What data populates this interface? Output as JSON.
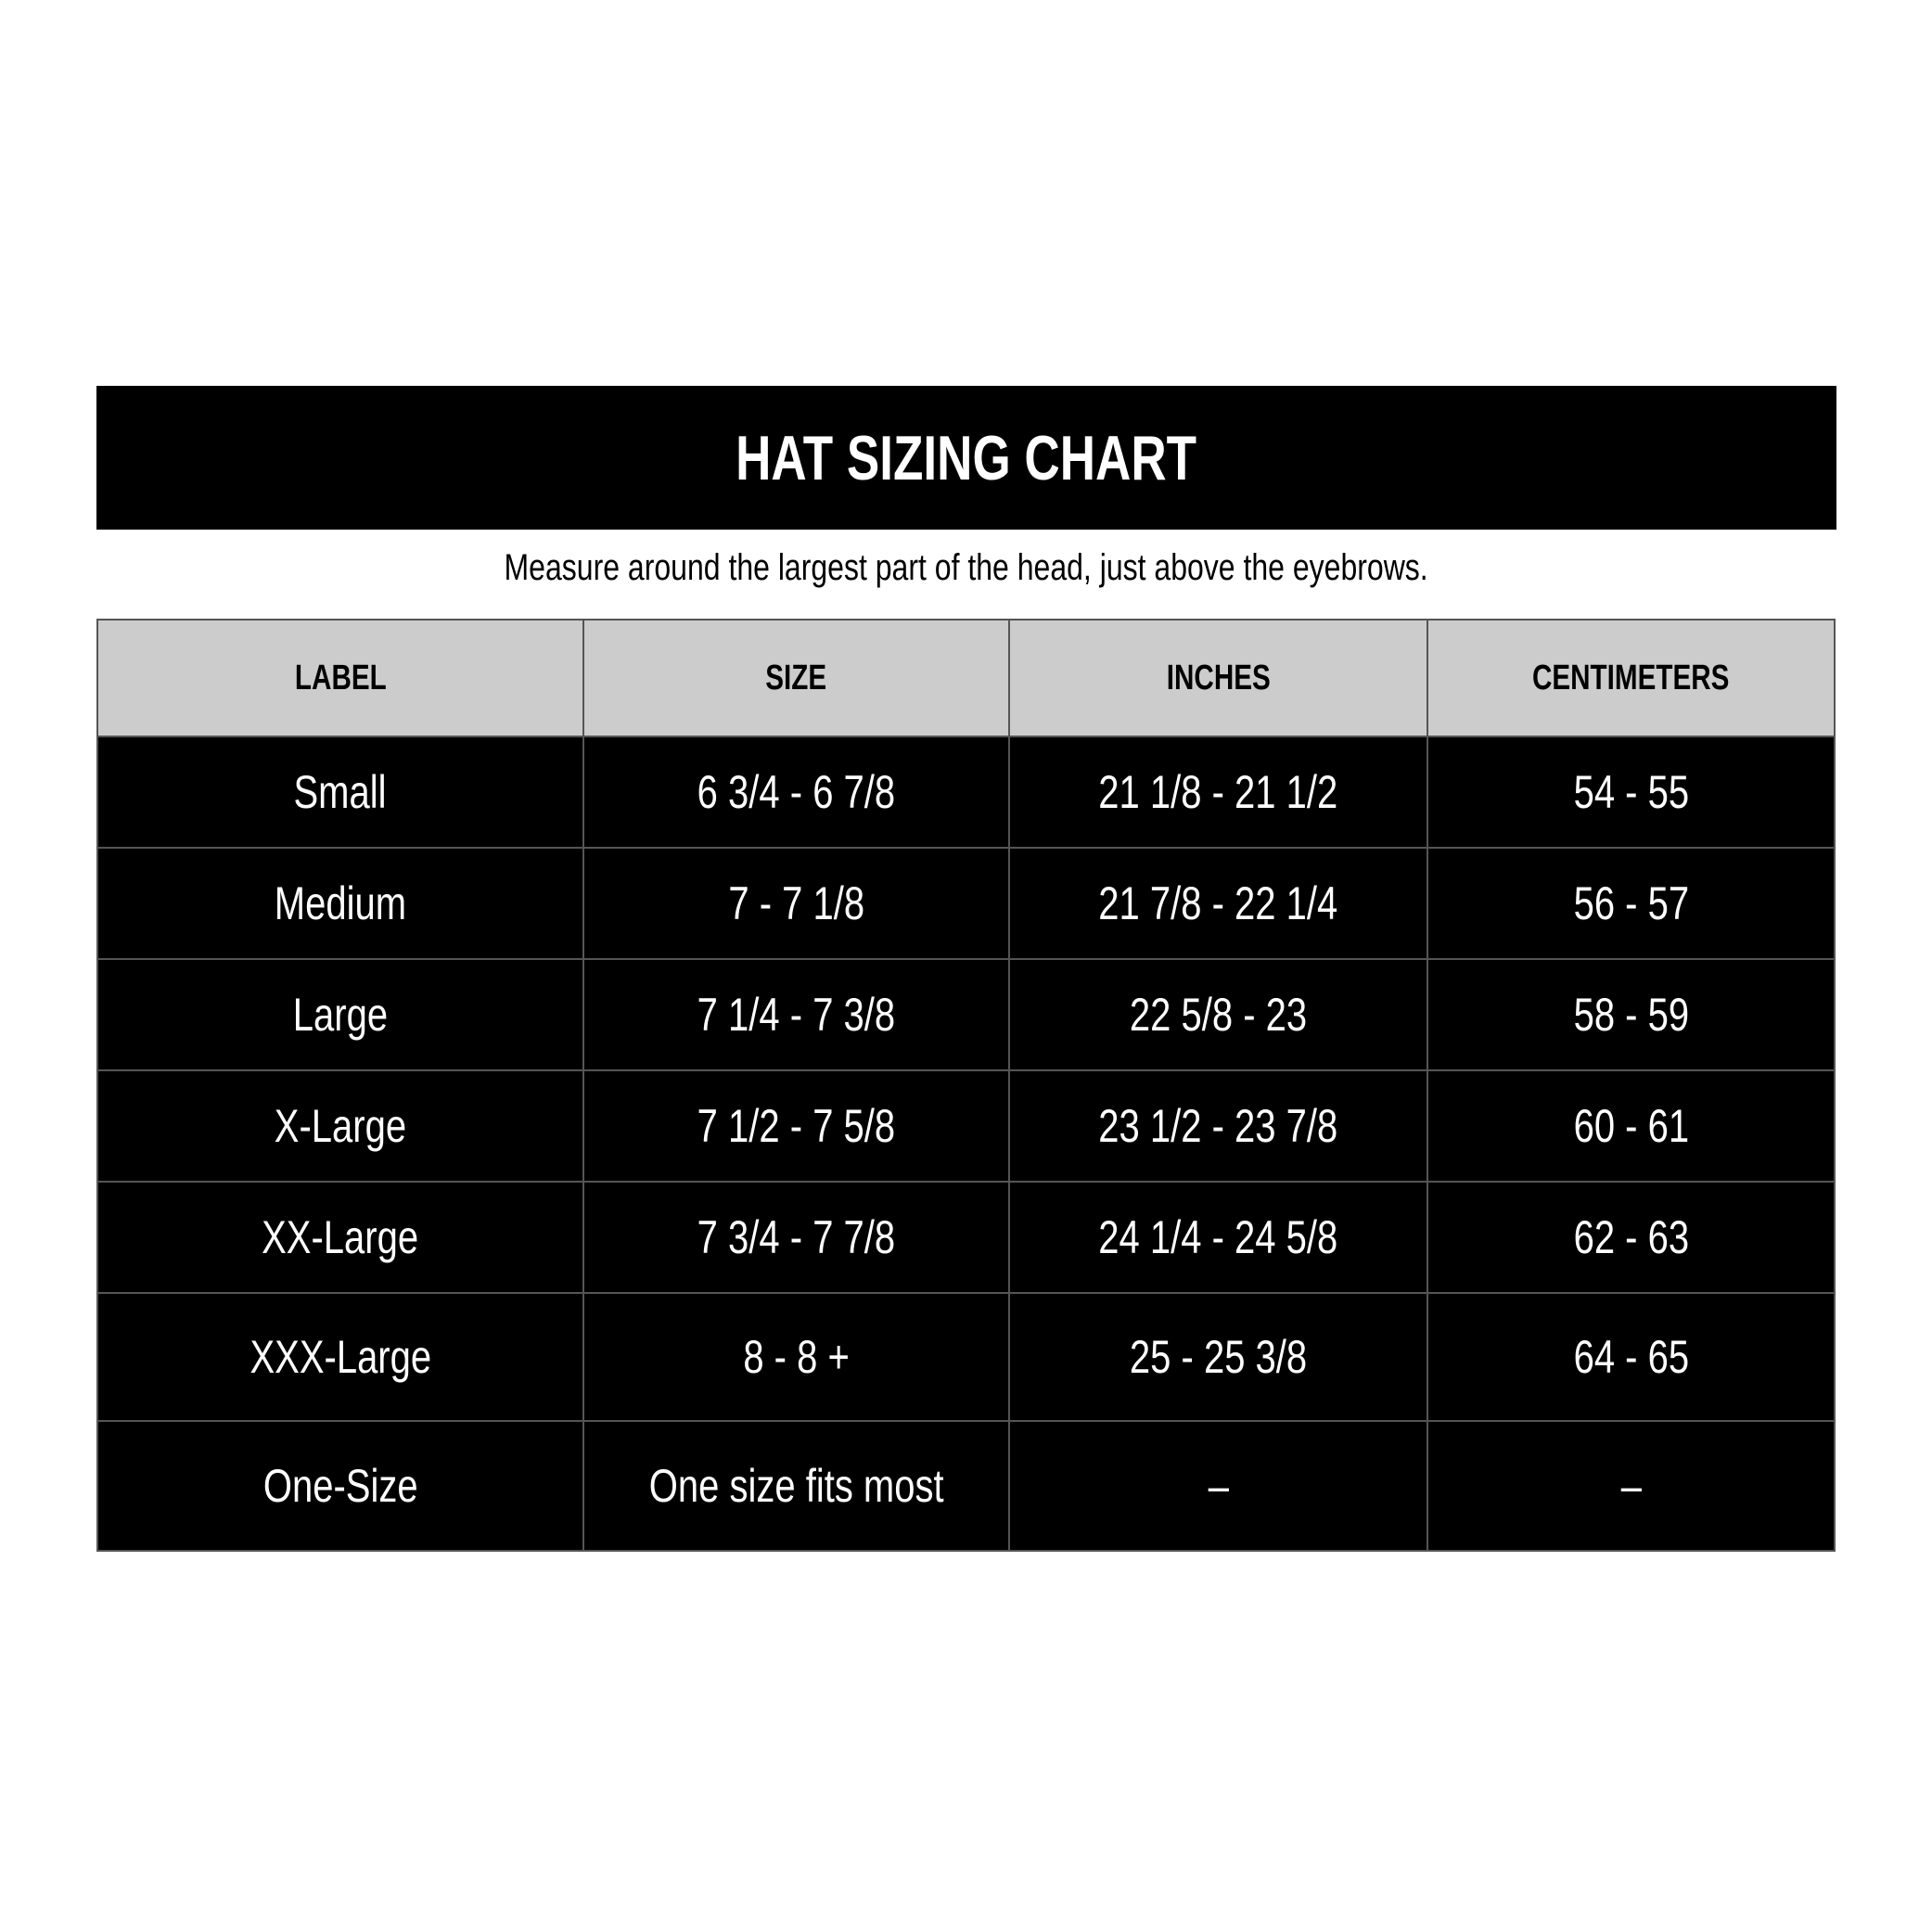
{
  "title": "HAT SIZING CHART",
  "subtitle": "Measure around the largest part of the head, just above the eyebrows.",
  "colors": {
    "header_bg": "#000000",
    "column_header_bg": "#cccccc",
    "row_bg": "#000000",
    "row_text": "#ffffff",
    "border": "#555555"
  },
  "table": {
    "headers": [
      "LABEL",
      "SIZE",
      "INCHES",
      "CENTIMETERS"
    ],
    "rows": [
      [
        "Small",
        "6 3/4 - 6 7/8",
        "21 1/8 - 21 1/2",
        "54 - 55"
      ],
      [
        "Medium",
        "7 - 7 1/8",
        "21 7/8 - 22 1/4",
        "56 - 57"
      ],
      [
        "Large",
        "7 1/4 - 7 3/8",
        "22 5/8 - 23",
        "58 - 59"
      ],
      [
        "X-Large",
        "7 1/2 - 7 5/8",
        "23 1/2 - 23 7/8",
        "60 - 61"
      ],
      [
        "XX-Large",
        "7 3/4 - 7 7/8",
        "24 1/4 - 24 5/8",
        "62 - 63"
      ],
      [
        "XXX-Large",
        "8 - 8 +",
        "25 - 25 3/8",
        "64 - 65"
      ],
      [
        "One-Size",
        "One size fits most",
        "–",
        "–"
      ]
    ]
  }
}
